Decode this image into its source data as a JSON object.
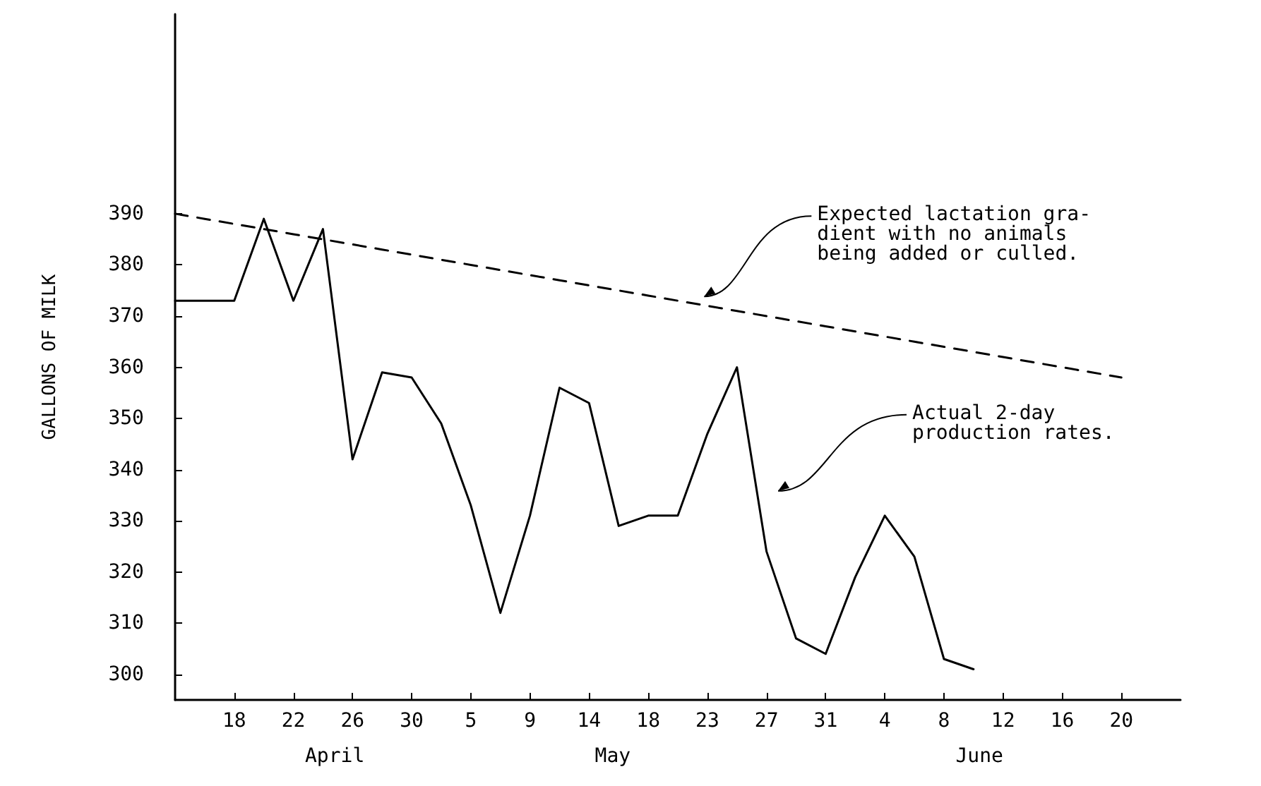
{
  "chart_data": {
    "type": "line",
    "ylabel": "GALLONS OF MILK",
    "categories": [
      null,
      null,
      "18",
      null,
      "22",
      null,
      "26",
      null,
      "30",
      null,
      "5",
      null,
      "9",
      null,
      "14",
      null,
      "18",
      null,
      "23",
      null,
      "27",
      null,
      "31",
      null,
      "4",
      null,
      "8",
      null,
      "12",
      null,
      "16",
      null,
      "20",
      null,
      null
    ],
    "ylim": [
      295,
      429
    ],
    "yticks": [
      300,
      310,
      320,
      330,
      340,
      350,
      360,
      370,
      380,
      390
    ],
    "series": [
      {
        "color": "#000000",
        "line_style": "solid",
        "values": [
          373,
          373,
          373,
          389,
          373,
          387,
          342,
          359,
          358,
          349,
          333,
          312,
          331,
          356,
          353,
          329,
          331,
          331,
          347,
          360,
          324,
          307,
          304,
          319,
          331,
          323,
          303,
          301,
          null,
          null,
          null,
          null,
          null,
          null,
          null
        ]
      },
      {
        "color": "#000000",
        "line_style": "dashed",
        "values": [
          390,
          389,
          388,
          387,
          386,
          385,
          384,
          383,
          382,
          381,
          380,
          379,
          378,
          377,
          376,
          375,
          374,
          373,
          372,
          371,
          370,
          369,
          368,
          367,
          366,
          365,
          364,
          363,
          362,
          361,
          360,
          359,
          358,
          null,
          null
        ]
      }
    ],
    "annotations": [
      "Expected lactation gra-\ndient with no animals\nbeing added or culled.",
      "Actual 2-day\nproduction rates.",
      "April",
      "May",
      "June"
    ]
  }
}
